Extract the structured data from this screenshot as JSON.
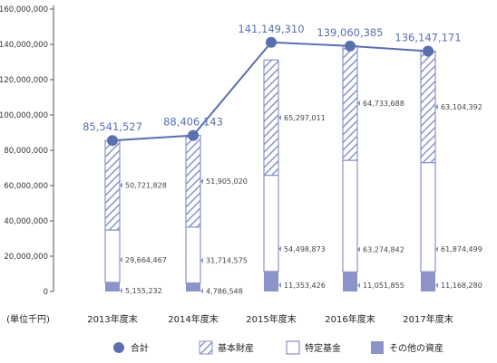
{
  "chart_data": {
    "type": "bar",
    "stacked": true,
    "unit_label": "(単位千円)",
    "categories": [
      "2013年度末",
      "2014年度末",
      "2015年度末",
      "2016年度末",
      "2017年度末"
    ],
    "y_ticks": [
      "0",
      "20,000,000",
      "40,000,000",
      "60,000,000",
      "80,000,000",
      "100,000,000",
      "120,000,000",
      "140,000,000",
      "160,000,000"
    ],
    "ylim": [
      0,
      160000000
    ],
    "grid": false,
    "legend_position": "bottom",
    "series": [
      {
        "name": "その他の資産",
        "kind": "bar",
        "color": "#8b93c9",
        "values": [
          5155232,
          4786548,
          11353426,
          11051855,
          11168280
        ],
        "labels": [
          "5,155,232",
          "4,786,548",
          "11,353,426",
          "11,051,855",
          "11,168,280"
        ]
      },
      {
        "name": "特定基金",
        "kind": "bar",
        "color": "#ffffff",
        "values": [
          29664467,
          31714575,
          54498873,
          63274842,
          61874499
        ],
        "labels": [
          "29,664,467",
          "31,714,575",
          "54,498,873",
          "63,274,842",
          "61,874,499"
        ]
      },
      {
        "name": "基本財産",
        "kind": "bar-hatched",
        "color": "#8b93c9",
        "values": [
          50721828,
          51905020,
          65297011,
          64733688,
          63104392
        ],
        "labels": [
          "50,721,828",
          "51,905,020",
          "65,297,011",
          "64,733,688",
          "63,104,392"
        ]
      },
      {
        "name": "合計",
        "kind": "line",
        "color": "#5a6fae",
        "values": [
          85541527,
          88406143,
          141149310,
          139060385,
          136147171
        ],
        "labels": [
          "85,541,527",
          "88,406,143",
          "141,149,310",
          "139,060,385",
          "136,147,171"
        ]
      }
    ],
    "legend_order": [
      "合計",
      "基本財産",
      "特定基金",
      "その他の資産"
    ]
  }
}
